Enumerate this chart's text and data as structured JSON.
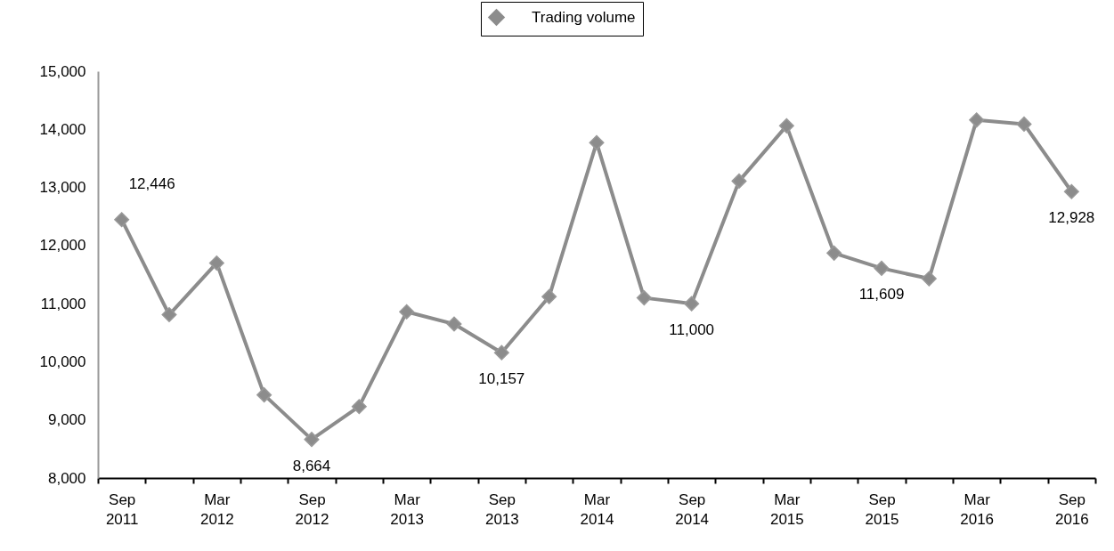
{
  "chart_data": {
    "type": "line",
    "categories": [
      "Sep 2011",
      null,
      "Mar 2012",
      null,
      "Sep 2012",
      null,
      "Mar 2013",
      null,
      "Sep 2013",
      null,
      "Mar 2014",
      null,
      "Sep 2014",
      null,
      "Mar 2015",
      null,
      "Sep 2015",
      null,
      "Mar 2016",
      null,
      "Sep 2016"
    ],
    "series": [
      {
        "name": "Trading volume",
        "color": "#8c8c8c",
        "values": [
          12446,
          10810,
          11700,
          9430,
          8664,
          9230,
          10860,
          10650,
          10157,
          11120,
          13770,
          11100,
          11000,
          13110,
          14060,
          11870,
          11609,
          11430,
          14160,
          14090,
          12928
        ],
        "value_labels": [
          "12,446",
          null,
          null,
          null,
          "8,664",
          null,
          null,
          null,
          "10,157",
          null,
          null,
          null,
          "11,000",
          null,
          null,
          null,
          "11,609",
          null,
          null,
          null,
          "12,928"
        ]
      }
    ],
    "ylim": [
      8000,
      15000
    ],
    "yticks": [
      {
        "value": 8000,
        "label": "8,000"
      },
      {
        "value": 9000,
        "label": "9,000"
      },
      {
        "value": 10000,
        "label": "10,000"
      },
      {
        "value": 11000,
        "label": "11,000"
      },
      {
        "value": 12000,
        "label": "12,000"
      },
      {
        "value": 13000,
        "label": "13,000"
      },
      {
        "value": 14000,
        "label": "14,000"
      },
      {
        "value": 15000,
        "label": "15,000"
      }
    ],
    "grid": false,
    "legend": "top",
    "marker": "diamond",
    "line_style": "solid"
  }
}
